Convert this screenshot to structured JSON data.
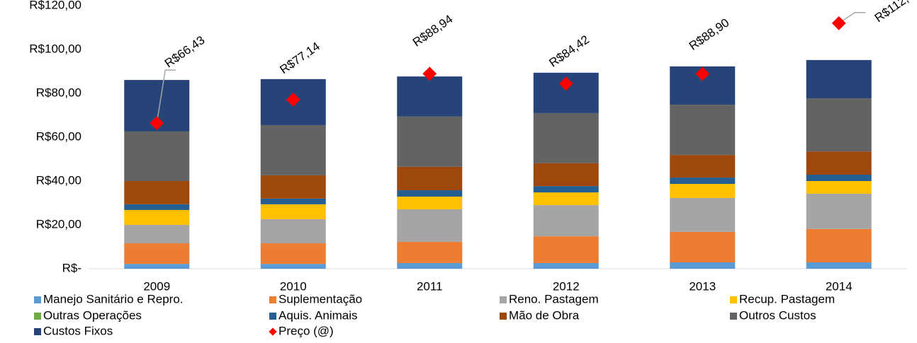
{
  "chart_data": {
    "type": "bar",
    "stacked": true,
    "categories": [
      "2009",
      "2010",
      "2011",
      "2012",
      "2013",
      "2014"
    ],
    "series": [
      {
        "name": "Manejo Sanitário e Repro.",
        "color": "#5b9bd5",
        "values": [
          2.2,
          2.2,
          2.6,
          2.6,
          2.9,
          2.9
        ]
      },
      {
        "name": "Suplementação",
        "color": "#ed7d31",
        "values": [
          9.4,
          9.4,
          9.7,
          12.2,
          13.9,
          15.2
        ]
      },
      {
        "name": "Reno. Pastagem",
        "color": "#a5a5a5",
        "values": [
          8.4,
          11,
          14.8,
          14.2,
          15.5,
          16.1
        ]
      },
      {
        "name": "Recup. Pastagem",
        "color": "#ffc000",
        "values": [
          6.8,
          6.8,
          5.8,
          5.8,
          6.4,
          5.8
        ]
      },
      {
        "name": "Outras Operações",
        "color": "#70ad47",
        "values": [
          0,
          0,
          0,
          0,
          0,
          0
        ]
      },
      {
        "name": "Aquis. Animais",
        "color": "#255e91",
        "values": [
          2.6,
          2.6,
          2.9,
          2.9,
          2.9,
          2.9
        ]
      },
      {
        "name": "Mão de Obra",
        "color": "#9e480e",
        "values": [
          10.6,
          10.6,
          10.7,
          10.4,
          10.3,
          10.6
        ]
      },
      {
        "name": "Outros Custos",
        "color": "#636363",
        "values": [
          22.6,
          22.9,
          22.9,
          22.9,
          22.9,
          24.2
        ]
      },
      {
        "name": "Custos Fixos",
        "color": "#264478",
        "values": [
          23.5,
          21,
          18.3,
          18.4,
          17.5,
          17.5
        ]
      },
      {
        "name": "Preço (@)",
        "color": "#ff0000",
        "type": "scatter",
        "values": [
          66.43,
          77.14,
          88.94,
          84.42,
          88.9,
          112
        ],
        "value_labels": [
          "R$66,43",
          "R$77,14",
          "R$88,94",
          "R$84,42",
          "R$88,90",
          "R$112,"
        ]
      }
    ],
    "ylim": [
      0,
      120
    ],
    "yticks": [
      {
        "value": 0,
        "label": "R$-"
      },
      {
        "value": 20,
        "label": "R$20,00"
      },
      {
        "value": 40,
        "label": "R$40,00"
      },
      {
        "value": 60,
        "label": "R$60,00"
      },
      {
        "value": 80,
        "label": "R$80,00"
      },
      {
        "value": 100,
        "label": "R$100,00"
      },
      {
        "value": 120,
        "label": "R$120,00"
      }
    ],
    "grid": false,
    "legend": "bottom"
  }
}
